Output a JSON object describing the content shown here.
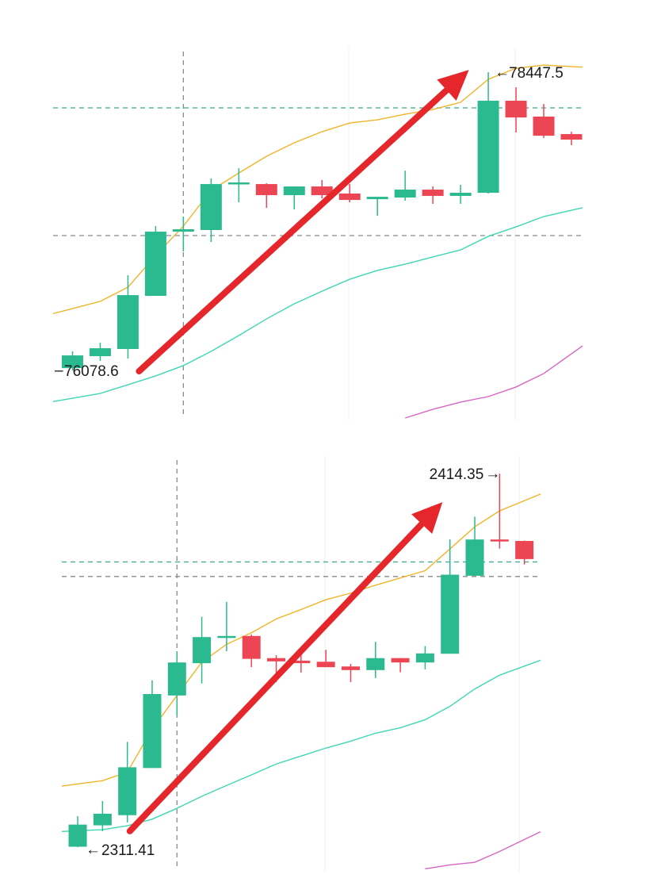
{
  "colors": {
    "up": "#2bb98f",
    "down": "#ec4655",
    "ma_fast": "#f0b429",
    "ma_mid": "#3fd6b4",
    "ma_slow": "#d665c3",
    "arrow": "#e5262b",
    "dashed_green": "#3aa88a",
    "dashed_gray": "#8a8a8a",
    "grid": "#f1f1f1"
  },
  "chart_data": [
    {
      "type": "candlestick",
      "title": "",
      "xlim": [
        0.3,
        19.4
      ],
      "ylim": [
        75682,
        78643
      ],
      "grid": true,
      "candles": [
        {
          "o": 76097,
          "h": 76230,
          "l": 76078.6,
          "c": 76198
        },
        {
          "o": 76192,
          "h": 76299,
          "l": 76154,
          "c": 76255
        },
        {
          "o": 76249,
          "h": 76835,
          "l": 76173,
          "c": 76677
        },
        {
          "o": 76671,
          "h": 77225,
          "l": 76671,
          "c": 77181
        },
        {
          "o": 77181,
          "h": 77301,
          "l": 77024,
          "c": 77200
        },
        {
          "o": 77194,
          "h": 77603,
          "l": 77099,
          "c": 77559
        },
        {
          "o": 77559,
          "h": 77685,
          "l": 77414,
          "c": 77572
        },
        {
          "o": 77559,
          "h": 77565,
          "l": 77370,
          "c": 77471
        },
        {
          "o": 77471,
          "h": 77540,
          "l": 77358,
          "c": 77540
        },
        {
          "o": 77540,
          "h": 77591,
          "l": 77446,
          "c": 77471
        },
        {
          "o": 77484,
          "h": 77559,
          "l": 77414,
          "c": 77433
        },
        {
          "o": 77439,
          "h": 77458,
          "l": 77307,
          "c": 77458
        },
        {
          "o": 77452,
          "h": 77666,
          "l": 77427,
          "c": 77515
        },
        {
          "o": 77515,
          "h": 77540,
          "l": 77402,
          "c": 77465
        },
        {
          "o": 77465,
          "h": 77553,
          "l": 77402,
          "c": 77490
        },
        {
          "o": 77490,
          "h": 78447.5,
          "l": 77484,
          "c": 78221
        },
        {
          "o": 78221,
          "h": 78328,
          "l": 77969,
          "c": 78088
        },
        {
          "o": 78095,
          "h": 78195,
          "l": 77925,
          "c": 77943
        },
        {
          "o": 77956,
          "h": 77975,
          "l": 77868,
          "c": 77912
        }
      ],
      "ma_fast": [
        76570,
        76627,
        76740,
        76992,
        77225,
        77509,
        77647,
        77780,
        77887,
        77975,
        78044,
        78069,
        78114,
        78151,
        78208,
        78391,
        78479,
        78504,
        78492
      ],
      "ma_mid": [
        75858,
        75896,
        75965,
        76035,
        76117,
        76230,
        76356,
        76488,
        76608,
        76708,
        76803,
        76873,
        76923,
        76980,
        77036,
        77144,
        77219,
        77301,
        77351
      ],
      "ma_slow": [
        null,
        null,
        null,
        null,
        null,
        null,
        null,
        null,
        null,
        null,
        null,
        null,
        75701,
        75770,
        75827,
        75871,
        75947,
        76054,
        76211
      ],
      "hlines": [
        {
          "price": 78164,
          "style": "dashed_green"
        },
        {
          "price": 77150,
          "style": "dashed_gray"
        }
      ],
      "vline_index": 5,
      "arrow": {
        "from": {
          "index": 3.4,
          "price": 76072
        },
        "to": {
          "index": 15.3,
          "price": 78466
        }
      },
      "high_label": "78447.5",
      "low_label": "76078.6",
      "high_value": 78447.5,
      "low_value": 76078.6,
      "high_index": 16,
      "low_index": 1
    },
    {
      "type": "candlestick",
      "title": "",
      "xlim": [
        0.36,
        19.65
      ],
      "ylim": [
        2304.4,
        2419.2
      ],
      "grid": true,
      "candles": [
        {
          "o": 2311.5,
          "h": 2319.9,
          "l": 2311.41,
          "c": 2317.6
        },
        {
          "o": 2317.4,
          "h": 2324.1,
          "l": 2315.8,
          "c": 2320.6
        },
        {
          "o": 2320.2,
          "h": 2340.4,
          "l": 2318.2,
          "c": 2333.4
        },
        {
          "o": 2333.2,
          "h": 2357.4,
          "l": 2333.2,
          "c": 2353.6
        },
        {
          "o": 2353.2,
          "h": 2365.4,
          "l": 2347.6,
          "c": 2362.3
        },
        {
          "o": 2362.1,
          "h": 2374.9,
          "l": 2356.5,
          "c": 2369.3
        },
        {
          "o": 2369.1,
          "h": 2379.0,
          "l": 2365.4,
          "c": 2369.6
        },
        {
          "o": 2369.6,
          "h": 2370.0,
          "l": 2361.0,
          "c": 2363.3
        },
        {
          "o": 2363.5,
          "h": 2364.3,
          "l": 2356.9,
          "c": 2362.6
        },
        {
          "o": 2362.8,
          "h": 2365.8,
          "l": 2359.5,
          "c": 2362.1
        },
        {
          "o": 2362.5,
          "h": 2365.8,
          "l": 2361.0,
          "c": 2361.0
        },
        {
          "o": 2361.2,
          "h": 2361.9,
          "l": 2356.9,
          "c": 2360.2
        },
        {
          "o": 2360.2,
          "h": 2368.0,
          "l": 2358.0,
          "c": 2363.5
        },
        {
          "o": 2363.5,
          "h": 2363.5,
          "l": 2359.6,
          "c": 2362.3
        },
        {
          "o": 2362.3,
          "h": 2366.8,
          "l": 2360.4,
          "c": 2364.8
        },
        {
          "o": 2364.7,
          "h": 2396.2,
          "l": 2364.7,
          "c": 2386.5
        },
        {
          "o": 2386.2,
          "h": 2402.5,
          "l": 2386.2,
          "c": 2396.2
        },
        {
          "o": 2396.2,
          "h": 2414.35,
          "l": 2393.7,
          "c": 2395.7
        },
        {
          "o": 2395.8,
          "h": 2395.9,
          "l": 2389.3,
          "c": 2390.8
        }
      ],
      "ma_fast": [
        2328.8,
        2329.7,
        2332.1,
        2343.9,
        2353.2,
        2362.4,
        2367.3,
        2370.5,
        2374.3,
        2376.9,
        2379.6,
        2381.4,
        2383.6,
        2385.6,
        2387.6,
        2393.6,
        2399.7,
        2404.1,
        2406.9
      ],
      "ma_mid": [
        2315.9,
        2316.2,
        2317.3,
        2319.1,
        2322.1,
        2325.4,
        2328.4,
        2331.3,
        2334.3,
        2336.5,
        2338.7,
        2340.6,
        2342.8,
        2344.3,
        2346.5,
        2350.2,
        2355.0,
        2358.8,
        2361.3
      ],
      "ma_slow": [
        null,
        null,
        null,
        null,
        null,
        null,
        null,
        null,
        null,
        null,
        null,
        null,
        null,
        null,
        2305.4,
        2306.5,
        2307.2,
        2310.2,
        2313.5
      ],
      "hlines": [
        {
          "price": 2390.0,
          "style": "dashed_green"
        },
        {
          "price": 2386.0,
          "style": "dashed_gray"
        }
      ],
      "vline_index": 5,
      "arrow": {
        "from": {
          "index": 3.1,
          "price": 2315.8
        },
        "to": {
          "index": 15.7,
          "price": 2406.5
        }
      },
      "high_label": "2414.35",
      "low_label": "2311.41",
      "high_value": 2414.35,
      "low_value": 2311.41,
      "high_index": 18,
      "low_index": 1
    }
  ]
}
